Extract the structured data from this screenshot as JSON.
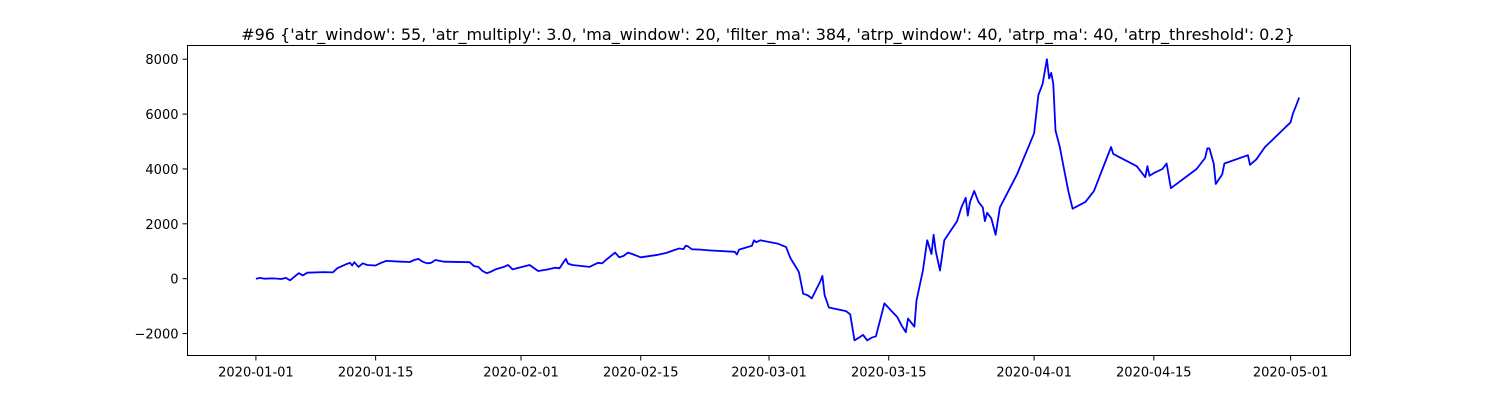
{
  "chart_data": {
    "type": "line",
    "title": "#96 {'atr_window': 55, 'atr_multiply': 3.0, 'ma_window': 20, 'filter_ma': 384, 'atrp_window': 40, 'atrp_ma': 40, 'atrp_threshold': 0.2}",
    "xlabel": "",
    "ylabel": "",
    "x_range": [
      "2019-12-24",
      "2020-05-08"
    ],
    "ylim": [
      -2800,
      8500
    ],
    "grid": false,
    "legend": "none",
    "x_ticks": [
      "2020-01-01",
      "2020-01-15",
      "2020-02-01",
      "2020-02-15",
      "2020-03-01",
      "2020-03-15",
      "2020-04-01",
      "2020-04-15",
      "2020-05-01"
    ],
    "y_ticks": [
      -2000,
      0,
      2000,
      4000,
      6000,
      8000
    ],
    "y_tick_labels": [
      "−2000",
      "0",
      "2000",
      "4000",
      "6000",
      "8000"
    ],
    "series": [
      {
        "color": "#0000ff",
        "points": [
          [
            "2020-01-01",
            0
          ],
          [
            "2020-01-01T12:00",
            30
          ],
          [
            "2020-01-02",
            0
          ],
          [
            "2020-01-03",
            10
          ],
          [
            "2020-01-04",
            -10
          ],
          [
            "2020-01-04T12:00",
            30
          ],
          [
            "2020-01-05",
            -60
          ],
          [
            "2020-01-06",
            200
          ],
          [
            "2020-01-06T12:00",
            120
          ],
          [
            "2020-01-07",
            220
          ],
          [
            "2020-01-09",
            240
          ],
          [
            "2020-01-10",
            230
          ],
          [
            "2020-01-10T12:00",
            380
          ],
          [
            "2020-01-11",
            450
          ],
          [
            "2020-01-11T12:00",
            520
          ],
          [
            "2020-01-12",
            580
          ],
          [
            "2020-01-12T06:00",
            480
          ],
          [
            "2020-01-12T12:00",
            600
          ],
          [
            "2020-01-13",
            430
          ],
          [
            "2020-01-13T12:00",
            560
          ],
          [
            "2020-01-14",
            500
          ],
          [
            "2020-01-15",
            480
          ],
          [
            "2020-01-15T12:00",
            560
          ],
          [
            "2020-01-16",
            620
          ],
          [
            "2020-01-16T06:00",
            650
          ],
          [
            "2020-01-18",
            620
          ],
          [
            "2020-01-19",
            610
          ],
          [
            "2020-01-19T12:00",
            680
          ],
          [
            "2020-01-20",
            720
          ],
          [
            "2020-01-20T12:00",
            620
          ],
          [
            "2020-01-21",
            560
          ],
          [
            "2020-01-21T12:00",
            580
          ],
          [
            "2020-01-22",
            680
          ],
          [
            "2020-01-23",
            620
          ],
          [
            "2020-01-26",
            600
          ],
          [
            "2020-01-26T12:00",
            460
          ],
          [
            "2020-01-27",
            430
          ],
          [
            "2020-01-27T12:00",
            280
          ],
          [
            "2020-01-28",
            200
          ],
          [
            "2020-01-28T12:00",
            260
          ],
          [
            "2020-01-29",
            340
          ],
          [
            "2020-01-30",
            430
          ],
          [
            "2020-01-30T12:00",
            500
          ],
          [
            "2020-01-31",
            340
          ],
          [
            "2020-02-02",
            500
          ],
          [
            "2020-02-03",
            280
          ],
          [
            "2020-02-04",
            330
          ],
          [
            "2020-02-05",
            400
          ],
          [
            "2020-02-05T12:00",
            380
          ],
          [
            "2020-02-06",
            620
          ],
          [
            "2020-02-06T06:00",
            720
          ],
          [
            "2020-02-06T12:00",
            550
          ],
          [
            "2020-02-07",
            500
          ],
          [
            "2020-02-09",
            430
          ],
          [
            "2020-02-10",
            580
          ],
          [
            "2020-02-10T12:00",
            560
          ],
          [
            "2020-02-11",
            700
          ],
          [
            "2020-02-12",
            950
          ],
          [
            "2020-02-12T12:00",
            780
          ],
          [
            "2020-02-13",
            830
          ],
          [
            "2020-02-13T12:00",
            950
          ],
          [
            "2020-02-14",
            900
          ],
          [
            "2020-02-15",
            780
          ],
          [
            "2020-02-17",
            870
          ],
          [
            "2020-02-18",
            940
          ],
          [
            "2020-02-19",
            1050
          ],
          [
            "2020-02-19T12:00",
            1100
          ],
          [
            "2020-02-20",
            1080
          ],
          [
            "2020-02-20T06:00",
            1200
          ],
          [
            "2020-02-20T12:00",
            1180
          ],
          [
            "2020-02-21",
            1070
          ],
          [
            "2020-02-22",
            1060
          ],
          [
            "2020-02-23",
            1030
          ],
          [
            "2020-02-26",
            980
          ],
          [
            "2020-02-26T06:00",
            880
          ],
          [
            "2020-02-26T12:00",
            1060
          ],
          [
            "2020-02-28",
            1200
          ],
          [
            "2020-02-28T06:00",
            1400
          ],
          [
            "2020-02-28T12:00",
            1330
          ],
          [
            "2020-02-29",
            1400
          ],
          [
            "2020-03-02",
            1280
          ],
          [
            "2020-03-03",
            1150
          ],
          [
            "2020-03-03T12:00",
            750
          ],
          [
            "2020-03-04",
            500
          ],
          [
            "2020-03-04T12:00",
            240
          ],
          [
            "2020-03-05",
            -550
          ],
          [
            "2020-03-05T12:00",
            -600
          ],
          [
            "2020-03-06",
            -720
          ],
          [
            "2020-03-07",
            -100
          ],
          [
            "2020-03-07T06:00",
            100
          ],
          [
            "2020-03-07T12:00",
            -600
          ],
          [
            "2020-03-08",
            -1050
          ],
          [
            "2020-03-10",
            -1180
          ],
          [
            "2020-03-10T12:00",
            -1300
          ],
          [
            "2020-03-11",
            -2250
          ],
          [
            "2020-03-11T12:00",
            -2150
          ],
          [
            "2020-03-12",
            -2050
          ],
          [
            "2020-03-12T12:00",
            -2250
          ],
          [
            "2020-03-13",
            -2150
          ],
          [
            "2020-03-13T12:00",
            -2100
          ],
          [
            "2020-03-14",
            -1500
          ],
          [
            "2020-03-14T12:00",
            -900
          ],
          [
            "2020-03-16",
            -1400
          ],
          [
            "2020-03-16T12:00",
            -1700
          ],
          [
            "2020-03-17",
            -1950
          ],
          [
            "2020-03-17T06:00",
            -1450
          ],
          [
            "2020-03-17T12:00",
            -1550
          ],
          [
            "2020-03-18",
            -1750
          ],
          [
            "2020-03-18T06:00",
            -800
          ],
          [
            "2020-03-19",
            300
          ],
          [
            "2020-03-19T12:00",
            1400
          ],
          [
            "2020-03-20",
            900
          ],
          [
            "2020-03-20T06:00",
            1600
          ],
          [
            "2020-03-20T12:00",
            1000
          ],
          [
            "2020-03-21",
            300
          ],
          [
            "2020-03-21T12:00",
            1400
          ],
          [
            "2020-03-23",
            2100
          ],
          [
            "2020-03-23T12:00",
            2600
          ],
          [
            "2020-03-24",
            2950
          ],
          [
            "2020-03-24T06:00",
            2300
          ],
          [
            "2020-03-24T12:00",
            2800
          ],
          [
            "2020-03-25",
            3200
          ],
          [
            "2020-03-25T12:00",
            2800
          ],
          [
            "2020-03-26",
            2600
          ],
          [
            "2020-03-26T06:00",
            2100
          ],
          [
            "2020-03-26T12:00",
            2400
          ],
          [
            "2020-03-27",
            2200
          ],
          [
            "2020-03-27T12:00",
            1600
          ],
          [
            "2020-03-28",
            2600
          ],
          [
            "2020-03-30",
            3800
          ],
          [
            "2020-04-01",
            5300
          ],
          [
            "2020-04-01T12:00",
            6700
          ],
          [
            "2020-04-02",
            7100
          ],
          [
            "2020-04-02T12:00",
            8000
          ],
          [
            "2020-04-02T18:00",
            7300
          ],
          [
            "2020-04-03",
            7500
          ],
          [
            "2020-04-03T06:00",
            7100
          ],
          [
            "2020-04-03T12:00",
            5400
          ],
          [
            "2020-04-04",
            4800
          ],
          [
            "2020-04-04T12:00",
            4000
          ],
          [
            "2020-04-05",
            3200
          ],
          [
            "2020-04-05T12:00",
            2550
          ],
          [
            "2020-04-07",
            2800
          ],
          [
            "2020-04-08",
            3200
          ],
          [
            "2020-04-09",
            4000
          ],
          [
            "2020-04-10",
            4800
          ],
          [
            "2020-04-10T06:00",
            4550
          ],
          [
            "2020-04-13",
            4100
          ],
          [
            "2020-04-13T12:00",
            3900
          ],
          [
            "2020-04-14",
            3700
          ],
          [
            "2020-04-14T06:00",
            4100
          ],
          [
            "2020-04-14T12:00",
            3750
          ],
          [
            "2020-04-15",
            3850
          ],
          [
            "2020-04-16",
            4000
          ],
          [
            "2020-04-16T12:00",
            4200
          ],
          [
            "2020-04-17",
            3300
          ],
          [
            "2020-04-20",
            4000
          ],
          [
            "2020-04-21",
            4400
          ],
          [
            "2020-04-21T06:00",
            4750
          ],
          [
            "2020-04-21T12:00",
            4750
          ],
          [
            "2020-04-22",
            4200
          ],
          [
            "2020-04-22T06:00",
            3450
          ],
          [
            "2020-04-23",
            3800
          ],
          [
            "2020-04-23T06:00",
            4200
          ],
          [
            "2020-04-26",
            4500
          ],
          [
            "2020-04-26T06:00",
            4150
          ],
          [
            "2020-04-27",
            4350
          ],
          [
            "2020-04-28",
            4800
          ],
          [
            "2020-04-28T12:00",
            4950
          ],
          [
            "2020-05-01",
            5700
          ],
          [
            "2020-05-01T06:00",
            6000
          ],
          [
            "2020-05-02",
            6600
          ]
        ]
      }
    ]
  }
}
